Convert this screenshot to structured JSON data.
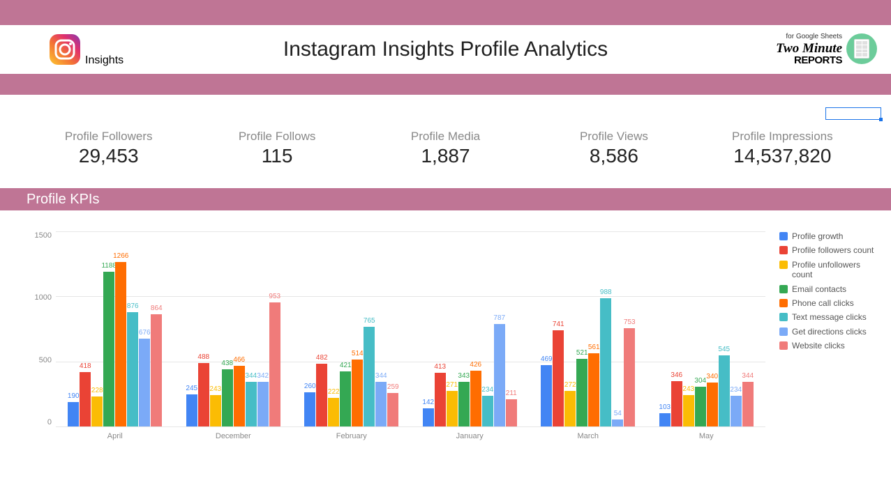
{
  "colors": {
    "band": "#bf7595",
    "text_primary": "#202020",
    "text_muted": "#888888",
    "grid": "#e6e6e6",
    "selection": "#1a73e8"
  },
  "header": {
    "insights_label": "Insights",
    "title": "Instagram Insights Profile Analytics",
    "for_sheets": "for Google Sheets",
    "two_minute": "Two Minute",
    "reports": "REPORTS"
  },
  "metrics": [
    {
      "label": "Profile Followers",
      "value": "29,453"
    },
    {
      "label": "Profile Follows",
      "value": "115"
    },
    {
      "label": "Profile Media",
      "value": "1,887"
    },
    {
      "label": "Profile Views",
      "value": "8,586"
    },
    {
      "label": "Profile Impressions",
      "value": "14,537,820"
    }
  ],
  "section_title": "Profile KPIs",
  "chart": {
    "type": "bar",
    "ymax": 1500,
    "ytick_step": 500,
    "yticks": [
      "1500",
      "1000",
      "500",
      "0"
    ],
    "series": [
      {
        "name": "Profile growth",
        "color": "#4285f4"
      },
      {
        "name": "Profile followers count",
        "color": "#ea4335"
      },
      {
        "name": "Profile unfollowers count",
        "color": "#fbbc04"
      },
      {
        "name": "Email contacts",
        "color": "#34a853"
      },
      {
        "name": "Phone call clicks",
        "color": "#ff6d01"
      },
      {
        "name": "Text message clicks",
        "color": "#46bdc6"
      },
      {
        "name": "Get directions clicks",
        "color": "#7baaf7"
      },
      {
        "name": "Website clicks",
        "color": "#f07b7a"
      }
    ],
    "months": [
      {
        "label": "April",
        "values": [
          190,
          418,
          228,
          1188,
          1266,
          876,
          676,
          864
        ]
      },
      {
        "label": "December",
        "values": [
          245,
          488,
          243,
          438,
          466,
          344,
          342,
          953
        ]
      },
      {
        "label": "February",
        "values": [
          260,
          482,
          222,
          421,
          514,
          765,
          344,
          259
        ]
      },
      {
        "label": "January",
        "values": [
          142,
          413,
          271,
          343,
          426,
          234,
          787,
          211
        ]
      },
      {
        "label": "March",
        "values": [
          469,
          741,
          272,
          521,
          561,
          988,
          54,
          753
        ]
      },
      {
        "label": "May",
        "values": [
          103,
          346,
          243,
          304,
          340,
          545,
          234,
          344
        ]
      }
    ]
  }
}
